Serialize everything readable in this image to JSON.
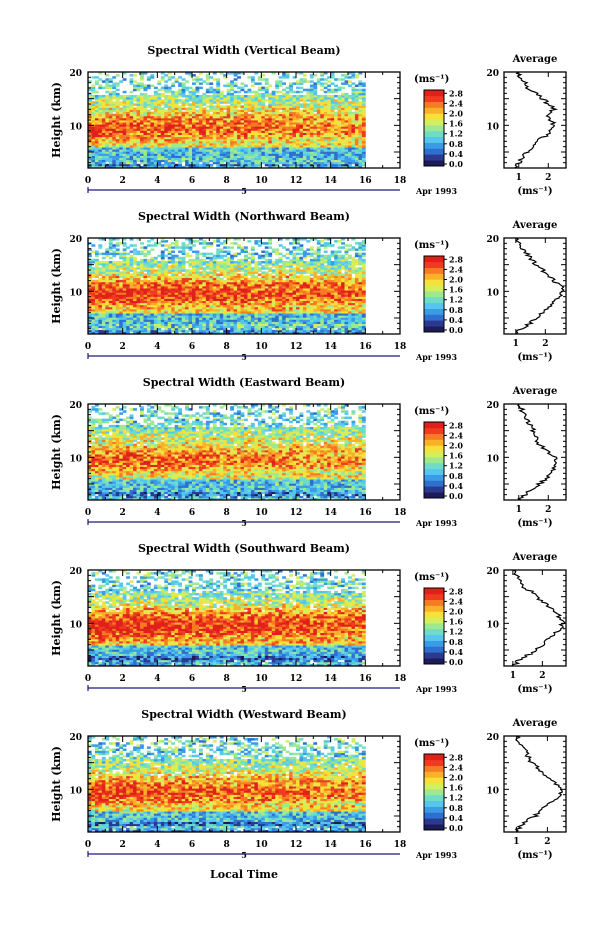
{
  "chart_data": [
    {
      "type": "heatmap",
      "title": "Spectral Width (Vertical Beam)",
      "ylabel": "Height (km)",
      "xlim": [
        0,
        18
      ],
      "ylim": [
        2,
        20
      ],
      "x_ticks": [
        "0",
        "2",
        "4",
        "6",
        "8",
        "10",
        "12",
        "14",
        "16",
        "18"
      ],
      "y_ticks": [
        "10",
        "20"
      ],
      "data_xrange": [
        0,
        16
      ],
      "colorbar": {
        "unit": "(ms⁻¹)",
        "range": [
          0,
          2.8
        ],
        "ticks": [
          "0.0",
          "0.4",
          "0.8",
          "1.2",
          "1.6",
          "2.0",
          "2.4",
          "2.8"
        ]
      },
      "profile": {
        "title": "Average",
        "xlabel": "(ms⁻¹)",
        "x_ticks": [
          "1",
          "2"
        ],
        "xlim": [
          0.5,
          2.6
        ],
        "heights": [
          2,
          3,
          4,
          5,
          6,
          7,
          8,
          9,
          10,
          11,
          12,
          13,
          14,
          15,
          16,
          17,
          18,
          19,
          20
        ],
        "values": [
          0.9,
          1.0,
          1.1,
          1.3,
          1.5,
          1.6,
          1.9,
          2.1,
          2.2,
          2.1,
          2.0,
          2.2,
          2.0,
          1.8,
          1.6,
          1.3,
          1.2,
          1.05,
          1.0
        ]
      }
    },
    {
      "type": "heatmap",
      "title": "Spectral Width (Northward Beam)",
      "ylabel": "Height (km)",
      "xlim": [
        0,
        18
      ],
      "ylim": [
        2,
        20
      ],
      "x_ticks": [
        "0",
        "2",
        "4",
        "6",
        "8",
        "10",
        "12",
        "14",
        "16",
        "18"
      ],
      "y_ticks": [
        "10",
        "20"
      ],
      "data_xrange": [
        0,
        16
      ],
      "colorbar": {
        "unit": "(ms⁻¹)",
        "range": [
          0,
          2.8
        ],
        "ticks": [
          "0.0",
          "0.4",
          "0.8",
          "1.2",
          "1.6",
          "2.0",
          "2.4",
          "2.8"
        ]
      },
      "profile": {
        "title": "Average",
        "xlabel": "(ms⁻¹)",
        "x_ticks": [
          "1",
          "2"
        ],
        "xlim": [
          0.6,
          2.7
        ],
        "heights": [
          2,
          3,
          4,
          5,
          6,
          7,
          8,
          9,
          10,
          11,
          12,
          13,
          14,
          15,
          16,
          17,
          18,
          19,
          20
        ],
        "values": [
          1.0,
          1.2,
          1.5,
          1.7,
          1.9,
          2.1,
          2.3,
          2.5,
          2.6,
          2.5,
          2.3,
          2.1,
          1.9,
          1.7,
          1.5,
          1.4,
          1.2,
          1.1,
          1.0
        ]
      }
    },
    {
      "type": "heatmap",
      "title": "Spectral Width (Eastward Beam)",
      "ylabel": "Height (km)",
      "xlim": [
        0,
        18
      ],
      "ylim": [
        2,
        20
      ],
      "x_ticks": [
        "0",
        "2",
        "4",
        "6",
        "8",
        "10",
        "12",
        "14",
        "16",
        "18"
      ],
      "y_ticks": [
        "10",
        "20"
      ],
      "data_xrange": [
        0,
        16
      ],
      "colorbar": {
        "unit": "(ms⁻¹)",
        "range": [
          0,
          2.8
        ],
        "ticks": [
          "0.0",
          "0.4",
          "0.8",
          "1.2",
          "1.6",
          "2.0",
          "2.4",
          "2.8"
        ]
      },
      "profile": {
        "title": "Average",
        "xlabel": "(ms⁻¹)",
        "x_ticks": [
          "1",
          "2"
        ],
        "xlim": [
          0.5,
          2.6
        ],
        "heights": [
          2,
          3,
          4,
          5,
          6,
          7,
          8,
          9,
          10,
          11,
          12,
          13,
          14,
          15,
          16,
          17,
          18,
          19,
          20
        ],
        "values": [
          1.0,
          1.2,
          1.4,
          1.7,
          1.9,
          2.1,
          2.2,
          2.3,
          2.2,
          2.0,
          1.8,
          1.6,
          1.6,
          1.5,
          1.4,
          1.3,
          1.2,
          1.1,
          1.0
        ]
      }
    },
    {
      "type": "heatmap",
      "title": "Spectral Width (Southward Beam)",
      "ylabel": "Height (km)",
      "xlim": [
        0,
        18
      ],
      "ylim": [
        2,
        20
      ],
      "x_ticks": [
        "0",
        "2",
        "4",
        "6",
        "8",
        "10",
        "12",
        "14",
        "16",
        "18"
      ],
      "y_ticks": [
        "10",
        "20"
      ],
      "data_xrange": [
        0,
        16
      ],
      "colorbar": {
        "unit": "(ms⁻¹)",
        "range": [
          0,
          2.8
        ],
        "ticks": [
          "0.0",
          "0.4",
          "0.8",
          "1.2",
          "1.6",
          "2.0",
          "2.4",
          "2.8"
        ]
      },
      "profile": {
        "title": "Average",
        "xlabel": "(ms⁻¹)",
        "x_ticks": [
          "1",
          "2"
        ],
        "xlim": [
          0.7,
          2.8
        ],
        "heights": [
          2,
          3,
          4,
          5,
          6,
          7,
          8,
          9,
          10,
          11,
          12,
          13,
          14,
          15,
          16,
          17,
          18,
          19,
          20
        ],
        "values": [
          1.0,
          1.2,
          1.5,
          1.8,
          2.0,
          2.2,
          2.4,
          2.6,
          2.7,
          2.6,
          2.5,
          2.3,
          2.0,
          1.8,
          1.6,
          1.3,
          1.2,
          1.1,
          1.0
        ]
      }
    },
    {
      "type": "heatmap",
      "title": "Spectral Width (Westward Beam)",
      "ylabel": "Height (km)",
      "xlim": [
        0,
        18
      ],
      "ylim": [
        2,
        20
      ],
      "x_ticks": [
        "0",
        "2",
        "4",
        "6",
        "8",
        "10",
        "12",
        "14",
        "16",
        "18"
      ],
      "y_ticks": [
        "10",
        "20"
      ],
      "data_xrange": [
        0,
        16
      ],
      "colorbar": {
        "unit": "(ms⁻¹)",
        "range": [
          0,
          2.8
        ],
        "ticks": [
          "0.0",
          "0.4",
          "0.8",
          "1.2",
          "1.6",
          "2.0",
          "2.4",
          "2.8"
        ]
      },
      "profile": {
        "title": "Average",
        "xlabel": "(ms⁻¹)",
        "x_ticks": [
          "1",
          "2"
        ],
        "xlim": [
          0.6,
          2.6
        ],
        "heights": [
          2,
          3,
          4,
          5,
          6,
          7,
          8,
          9,
          10,
          11,
          12,
          13,
          14,
          15,
          16,
          17,
          18,
          19,
          20
        ],
        "values": [
          1.0,
          1.1,
          1.3,
          1.6,
          1.8,
          2.0,
          2.2,
          2.4,
          2.5,
          2.3,
          2.1,
          1.9,
          1.7,
          1.5,
          1.4,
          1.3,
          1.2,
          1.1,
          1.0
        ]
      }
    }
  ],
  "date_label": "Apr 1993",
  "date_tick_label": "5",
  "xlabel": "Local Time",
  "colormap": [
    "#1c1c5a",
    "#2b3a8f",
    "#2f6fd0",
    "#3a9be6",
    "#55c6ee",
    "#6fdcc8",
    "#9ee890",
    "#d4ee5c",
    "#f6e03a",
    "#fbb02a",
    "#f77b22",
    "#ef3b1f",
    "#e0201a"
  ]
}
